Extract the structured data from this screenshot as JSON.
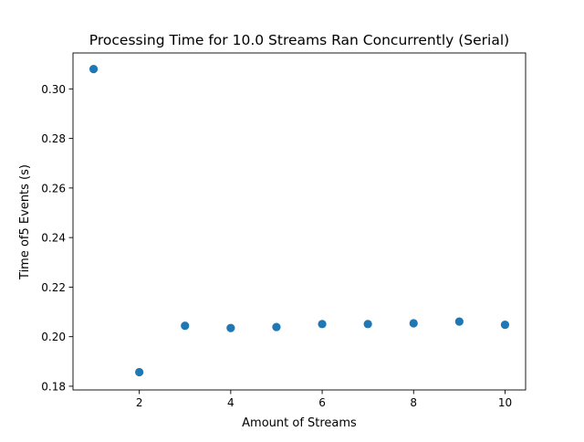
{
  "chart_data": {
    "type": "scatter",
    "title": "Processing Time for 10.0 Streams Ran Concurrently (Serial)",
    "xlabel": "Amount of Streams",
    "ylabel": "Time of5 Events (s)",
    "xlim": [
      0.55,
      10.45
    ],
    "ylim": [
      0.1785,
      0.3145
    ],
    "xticks": [
      2,
      4,
      6,
      8,
      10
    ],
    "yticks": [
      0.18,
      0.2,
      0.22,
      0.24,
      0.26,
      0.28,
      0.3
    ],
    "ytick_labels": [
      "0.18",
      "0.20",
      "0.22",
      "0.24",
      "0.26",
      "0.28",
      "0.30"
    ],
    "grid": false,
    "marker_color": "#1f77b4",
    "x": [
      1,
      2,
      3,
      4,
      5,
      6,
      7,
      8,
      9,
      10
    ],
    "y": [
      0.308,
      0.1857,
      0.2044,
      0.2035,
      0.2039,
      0.2051,
      0.2051,
      0.2054,
      0.2061,
      0.2048
    ]
  }
}
